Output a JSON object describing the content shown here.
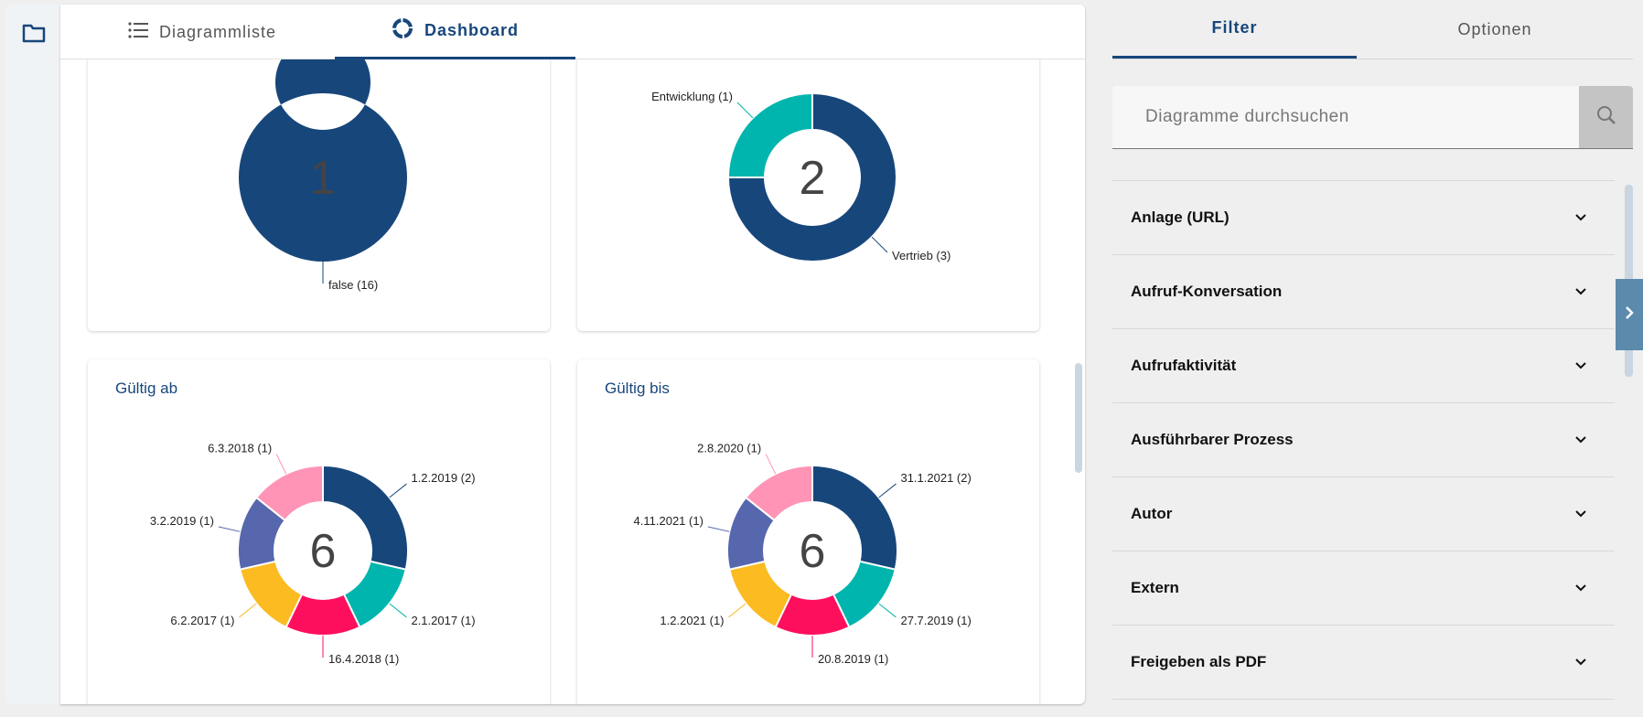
{
  "tabs": {
    "list_label": "Diagrammliste",
    "dashboard_label": "Dashboard",
    "active": "Dashboard"
  },
  "right_panel": {
    "tabs": [
      {
        "label": "Filter",
        "active": true
      },
      {
        "label": "Optionen",
        "active": false
      }
    ],
    "search": {
      "placeholder": "Diagramme durchsuchen",
      "value": ""
    },
    "filters": [
      {
        "label": "Anlage (URL)"
      },
      {
        "label": "Aufruf-Konversation"
      },
      {
        "label": "Aufrufaktivität"
      },
      {
        "label": "Ausführbarer Prozess"
      },
      {
        "label": "Autor"
      },
      {
        "label": "Extern"
      },
      {
        "label": "Freigeben als PDF"
      }
    ]
  },
  "colors": {
    "primary": "#17467b",
    "teal": "#00b5ad",
    "red": "#fe0f5e",
    "yellow": "#fbbb21",
    "indigo": "#5767ae",
    "pink": "#ff94b7"
  },
  "chart_data": [
    {
      "type": "pie",
      "donut": true,
      "title": "",
      "center_label": "1",
      "slices": [
        {
          "label": "false (16)",
          "value": 16,
          "color": "#17467b"
        }
      ]
    },
    {
      "type": "pie",
      "donut": true,
      "title": "",
      "center_label": "2",
      "slices": [
        {
          "label": "Vertrieb (3)",
          "value": 3,
          "color": "#17467b"
        },
        {
          "label": "Entwicklung (1)",
          "value": 1,
          "color": "#00b5ad"
        }
      ]
    },
    {
      "type": "pie",
      "donut": true,
      "title": "Gültig ab",
      "center_label": "6",
      "slices": [
        {
          "label": "1.2.2019 (2)",
          "value": 2,
          "color": "#17467b"
        },
        {
          "label": "2.1.2017 (1)",
          "value": 1,
          "color": "#00b5ad"
        },
        {
          "label": "16.4.2018 (1)",
          "value": 1,
          "color": "#fe0f5e"
        },
        {
          "label": "6.2.2017 (1)",
          "value": 1,
          "color": "#fbbb21"
        },
        {
          "label": "3.2.2019 (1)",
          "value": 1,
          "color": "#5767ae"
        },
        {
          "label": "6.3.2018 (1)",
          "value": 1,
          "color": "#ff94b7"
        }
      ]
    },
    {
      "type": "pie",
      "donut": true,
      "title": "Gültig bis",
      "center_label": "6",
      "slices": [
        {
          "label": "31.1.2021 (2)",
          "value": 2,
          "color": "#17467b"
        },
        {
          "label": "27.7.2019 (1)",
          "value": 1,
          "color": "#00b5ad"
        },
        {
          "label": "20.8.2019 (1)",
          "value": 1,
          "color": "#fe0f5e"
        },
        {
          "label": "1.2.2021 (1)",
          "value": 1,
          "color": "#fbbb21"
        },
        {
          "label": "4.11.2021 (1)",
          "value": 1,
          "color": "#5767ae"
        },
        {
          "label": "2.8.2020 (1)",
          "value": 1,
          "color": "#ff94b7"
        }
      ]
    }
  ]
}
